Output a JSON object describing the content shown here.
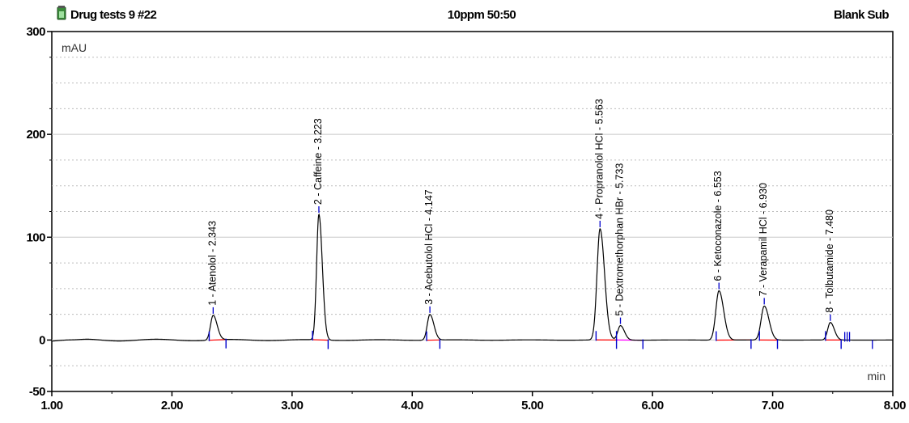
{
  "header": {
    "title": "Drug tests 9 #22",
    "method": "10ppm 50:50",
    "mode": "Blank Sub",
    "icon": "vial-icon"
  },
  "chart_data": {
    "type": "line",
    "title": "",
    "xlabel": "min",
    "ylabel": "mAU",
    "xlim": [
      1.0,
      8.0
    ],
    "ylim": [
      -50,
      300
    ],
    "x_ticks": [
      "1.00",
      "2.00",
      "3.00",
      "4.00",
      "5.00",
      "6.00",
      "7.00",
      "8.00"
    ],
    "y_ticks": [
      "300",
      "200",
      "100",
      "0",
      "-50"
    ],
    "grid": "horizontal-dotted",
    "colors": {
      "trace": "#000000",
      "marker": "#0000cc",
      "baseline": "#ff0000",
      "label": "#000000"
    },
    "peaks": [
      {
        "label": "1 - Atenolol - 2.343",
        "rt": 2.343,
        "height": 24,
        "width": 0.022,
        "start": 2.31,
        "end": 2.45
      },
      {
        "label": "2 - Caffeine - 3.223",
        "rt": 3.223,
        "height": 122,
        "width": 0.019,
        "start": 3.17,
        "end": 3.3
      },
      {
        "label": "3 - Acebutolol HCl - 4.147",
        "rt": 4.147,
        "height": 25,
        "width": 0.022,
        "start": 4.12,
        "end": 4.23
      },
      {
        "label": "4 - Propranolol HCl - 5.563",
        "rt": 5.563,
        "height": 108,
        "width": 0.025,
        "start": 5.53,
        "end": 5.7
      },
      {
        "label": "5 - Dextromethorphan HBr - 5.733",
        "rt": 5.733,
        "height": 14,
        "width": 0.022,
        "start": 5.7,
        "end": 5.92
      },
      {
        "label": "6 - Ketoconazole - 6.553",
        "rt": 6.553,
        "height": 48,
        "width": 0.026,
        "start": 6.53,
        "end": 6.82
      },
      {
        "label": "7 - Verapamil HCl - 6.930",
        "rt": 6.93,
        "height": 33,
        "width": 0.026,
        "start": 6.89,
        "end": 7.04
      },
      {
        "label": "8 - Tolbutamide - 7.480",
        "rt": 7.48,
        "height": 17,
        "width": 0.022,
        "start": 7.44,
        "end": 7.57
      }
    ]
  }
}
